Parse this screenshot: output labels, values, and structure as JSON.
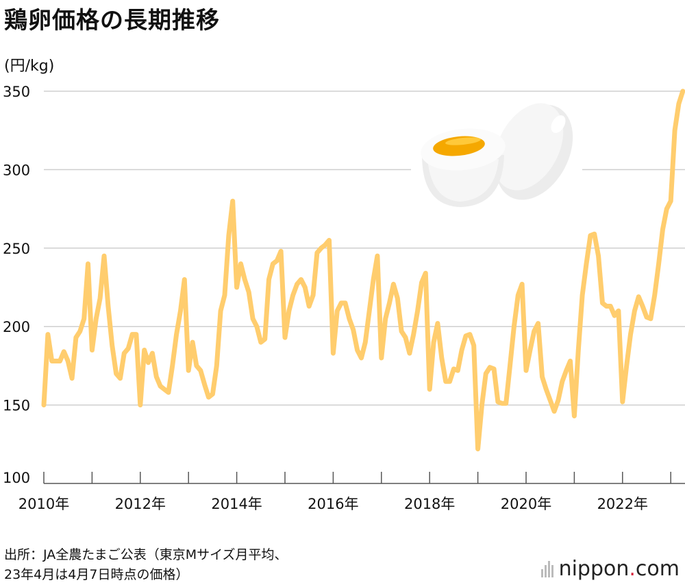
{
  "title": "鶏卵価格の長期推移",
  "unit_label": "(円/kg)",
  "source_line1": "出所：JA全農たまご公表（東京Mサイズ月平均、",
  "source_line2": "23年4月は4月7日時点の価格）",
  "logo": {
    "name": "nippon",
    "dot": ".",
    "tld": "com"
  },
  "colors": {
    "line": "#FFCD6E",
    "grid": "#cfcfcf",
    "yolk": "#F5A800",
    "logo_dot": "#d7263d"
  },
  "chart_data": {
    "type": "line",
    "title": "鶏卵価格の長期推移",
    "ylabel": "(円/kg)",
    "ylim": [
      100,
      350
    ],
    "yticks": [
      100,
      150,
      200,
      250,
      300,
      350
    ],
    "xticks": [
      {
        "label": "2010年",
        "year": 2010
      },
      {
        "label": "2012年",
        "year": 2012
      },
      {
        "label": "2014年",
        "year": 2014
      },
      {
        "label": "2016年",
        "year": 2016
      },
      {
        "label": "2018年",
        "year": 2018
      },
      {
        "label": "2020年",
        "year": 2020
      },
      {
        "label": "2022年",
        "year": 2022
      }
    ],
    "grid": true,
    "series": [
      {
        "start": "2010-01",
        "frequency": "monthly",
        "values": [
          150,
          195,
          178,
          178,
          178,
          184,
          178,
          167,
          193,
          197,
          205,
          240,
          185,
          205,
          218,
          245,
          213,
          188,
          170,
          167,
          183,
          186,
          195,
          195,
          150,
          185,
          177,
          183,
          168,
          162,
          160,
          158,
          175,
          195,
          210,
          230,
          172,
          190,
          175,
          172,
          163,
          155,
          157,
          175,
          210,
          220,
          258,
          280,
          225,
          240,
          230,
          222,
          205,
          200,
          190,
          192,
          230,
          240,
          242,
          248,
          193,
          210,
          220,
          227,
          230,
          225,
          213,
          220,
          247,
          250,
          252,
          255,
          183,
          210,
          215,
          215,
          205,
          198,
          185,
          180,
          190,
          210,
          230,
          245,
          180,
          205,
          215,
          227,
          218,
          197,
          193,
          183,
          195,
          210,
          228,
          234,
          160,
          190,
          202,
          180,
          165,
          165,
          173,
          172,
          185,
          194,
          195,
          188,
          122,
          150,
          170,
          174,
          173,
          152,
          151,
          151,
          175,
          200,
          220,
          227,
          172,
          185,
          197,
          202,
          168,
          160,
          153,
          146,
          153,
          165,
          172,
          178,
          143,
          185,
          220,
          240,
          258,
          259,
          245,
          215,
          213,
          213,
          207,
          210,
          152,
          175,
          195,
          210,
          219,
          213,
          206,
          205,
          220,
          240,
          262,
          275,
          280,
          325,
          342,
          350
        ]
      }
    ]
  }
}
